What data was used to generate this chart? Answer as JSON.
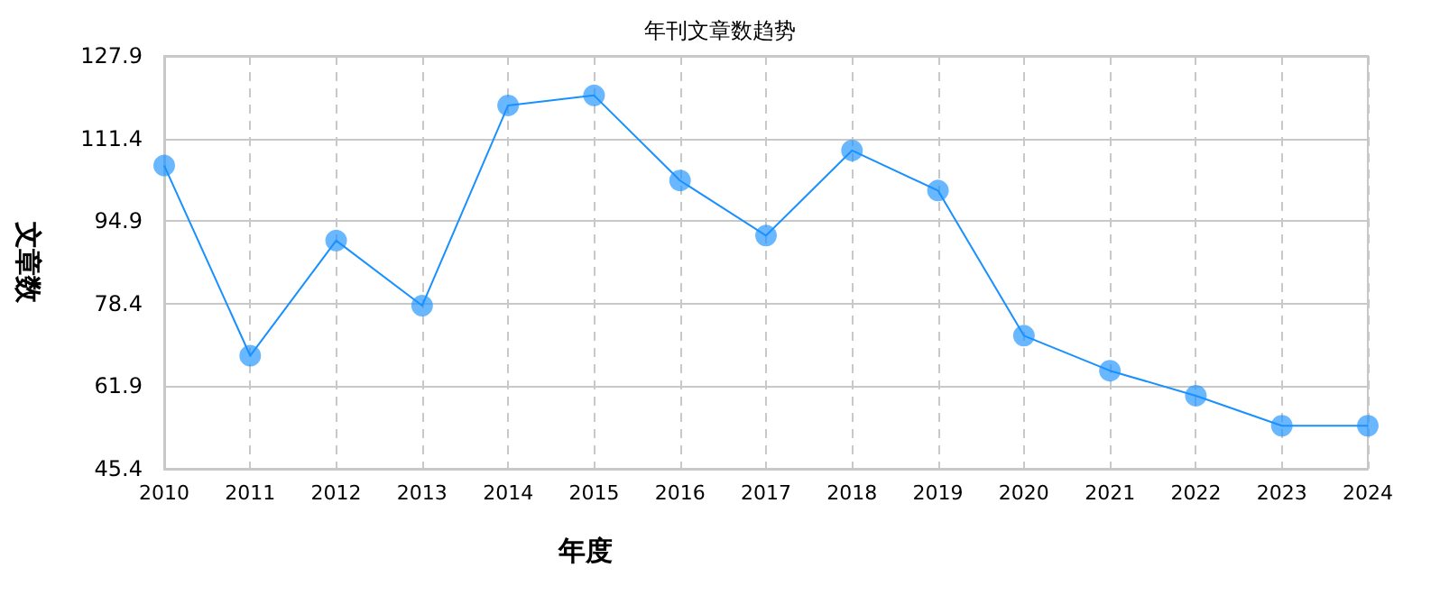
{
  "chart_data": {
    "type": "line",
    "title": "年刊文章数趋势",
    "xlabel": "年度",
    "ylabel": "文章数",
    "categories": [
      "2010",
      "2011",
      "2012",
      "2013",
      "2014",
      "2015",
      "2016",
      "2017",
      "2018",
      "2019",
      "2020",
      "2021",
      "2022",
      "2023",
      "2024"
    ],
    "series": [
      {
        "color": "#1890ff",
        "values": [
          106,
          68,
          91,
          78,
          118,
          120,
          103,
          92,
          109,
          101,
          72,
          65,
          60,
          54,
          54
        ]
      }
    ],
    "ylim": [
      45.4,
      127.9
    ],
    "yticks": [
      45.4,
      61.9,
      78.4,
      94.9,
      111.4,
      127.9
    ],
    "grid": true,
    "marker": "circle",
    "line_style": "solid"
  }
}
